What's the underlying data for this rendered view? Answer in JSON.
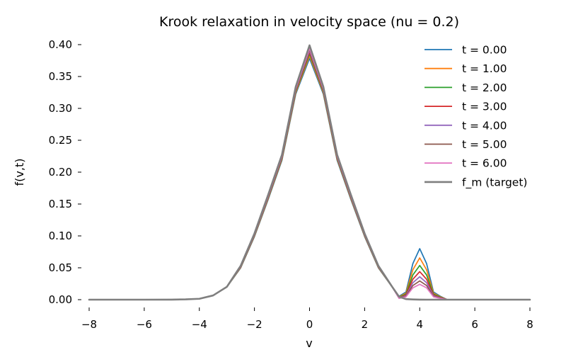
{
  "chart_data": {
    "type": "line",
    "title": "Krook relaxation in velocity space (nu = 0.2)",
    "xlabel": "v",
    "ylabel": "f(v,t)",
    "xlim": [
      -8,
      8
    ],
    "ylim": [
      0,
      0.4
    ],
    "xticks": [
      -8,
      -6,
      -4,
      -2,
      0,
      2,
      4,
      6,
      8
    ],
    "yticks": [
      0.0,
      0.05,
      0.1,
      0.15,
      0.2,
      0.25,
      0.3,
      0.35,
      0.4
    ],
    "xtick_labels": [
      "−8",
      "−6",
      "−4",
      "−2",
      "0",
      "2",
      "4",
      "6",
      "8"
    ],
    "ytick_labels": [
      "0.00",
      "0.05",
      "0.10",
      "0.15",
      "0.20",
      "0.25",
      "0.30",
      "0.35",
      "0.40"
    ],
    "grid": false,
    "legend_position": "top-right",
    "x": [
      -8,
      -7,
      -6,
      -5,
      -4.5,
      -4,
      -3.5,
      -3,
      -2.5,
      -2,
      -1.5,
      -1,
      -0.5,
      0,
      0.5,
      1,
      1.5,
      2,
      2.5,
      3,
      3.25,
      3.5,
      3.75,
      4,
      4.25,
      4.5,
      4.75,
      5,
      5.5,
      6,
      7,
      8
    ],
    "series": [
      {
        "name": "t = 0.00",
        "color": "#1f77b4",
        "values": [
          0,
          0,
          0,
          0.0001,
          0.0005,
          0.0014,
          0.0066,
          0.0198,
          0.0498,
          0.0989,
          0.1573,
          0.2188,
          0.3226,
          0.3784,
          0.3226,
          0.2188,
          0.1573,
          0.0989,
          0.0498,
          0.0198,
          0.0053,
          0.012,
          0.0565,
          0.08,
          0.0565,
          0.012,
          0.0053,
          0,
          0,
          0,
          0,
          0
        ]
      },
      {
        "name": "t = 1.00",
        "color": "#ff7f0e",
        "values": [
          0,
          0,
          0,
          0.0001,
          0.0005,
          0.0014,
          0.0066,
          0.0199,
          0.0504,
          0.0998,
          0.1587,
          0.2204,
          0.3247,
          0.3824,
          0.3247,
          0.2204,
          0.1587,
          0.0998,
          0.0504,
          0.0199,
          0.0045,
          0.0102,
          0.0468,
          0.0655,
          0.0468,
          0.0102,
          0.0045,
          0,
          0,
          0,
          0,
          0
        ]
      },
      {
        "name": "t = 2.00",
        "color": "#2ca02c",
        "values": [
          0,
          0,
          0,
          0.0001,
          0.0005,
          0.0014,
          0.0066,
          0.0199,
          0.0509,
          0.1005,
          0.1597,
          0.2217,
          0.3265,
          0.3857,
          0.3265,
          0.2217,
          0.1597,
          0.1005,
          0.0509,
          0.0199,
          0.0038,
          0.0086,
          0.0387,
          0.0536,
          0.0387,
          0.0086,
          0.0038,
          0,
          0,
          0,
          0,
          0
        ]
      },
      {
        "name": "t = 3.00",
        "color": "#d62728",
        "values": [
          0,
          0,
          0,
          0.0001,
          0.0005,
          0.0014,
          0.0066,
          0.02,
          0.0513,
          0.1011,
          0.1606,
          0.2228,
          0.3279,
          0.3884,
          0.3279,
          0.2228,
          0.1606,
          0.1011,
          0.0513,
          0.02,
          0.0032,
          0.0072,
          0.032,
          0.0439,
          0.032,
          0.0072,
          0.0032,
          0,
          0,
          0,
          0,
          0
        ]
      },
      {
        "name": "t = 4.00",
        "color": "#9467bd",
        "values": [
          0,
          0,
          0,
          0.0001,
          0.0005,
          0.0014,
          0.0066,
          0.02,
          0.0516,
          0.1016,
          0.1613,
          0.2237,
          0.3291,
          0.3906,
          0.3291,
          0.2237,
          0.1613,
          0.1016,
          0.0516,
          0.02,
          0.0027,
          0.0061,
          0.0265,
          0.0359,
          0.0265,
          0.0061,
          0.0027,
          0,
          0,
          0,
          0,
          0
        ]
      },
      {
        "name": "t = 5.00",
        "color": "#8c564b",
        "values": [
          0,
          0,
          0,
          0.0001,
          0.0005,
          0.0014,
          0.0066,
          0.02,
          0.0519,
          0.102,
          0.1619,
          0.2244,
          0.33,
          0.3925,
          0.33,
          0.2244,
          0.1619,
          0.102,
          0.0519,
          0.02,
          0.0023,
          0.0052,
          0.0222,
          0.0294,
          0.0222,
          0.0052,
          0.0023,
          0,
          0,
          0,
          0,
          0
        ]
      },
      {
        "name": "t = 6.00",
        "color": "#e377c2",
        "values": [
          0,
          0,
          0,
          0.0001,
          0.0005,
          0.0014,
          0.0066,
          0.0201,
          0.0521,
          0.1023,
          0.1624,
          0.225,
          0.3308,
          0.394,
          0.3308,
          0.225,
          0.1624,
          0.1023,
          0.0521,
          0.0201,
          0.0019,
          0.0044,
          0.0185,
          0.0241,
          0.0185,
          0.0044,
          0.0019,
          0,
          0,
          0,
          0,
          0
        ]
      },
      {
        "name": "f_m (target)",
        "color": "#7f7f7f",
        "values": [
          0,
          0,
          0,
          0.0001,
          0.0005,
          0.0014,
          0.0066,
          0.0202,
          0.0531,
          0.1038,
          0.1646,
          0.2275,
          0.3341,
          0.3989,
          0.3341,
          0.2275,
          0.1646,
          0.1038,
          0.0531,
          0.0202,
          0.0046,
          0.0009,
          0.0004,
          0.0001,
          0,
          0,
          0,
          0,
          0,
          0,
          0,
          0
        ]
      }
    ]
  }
}
